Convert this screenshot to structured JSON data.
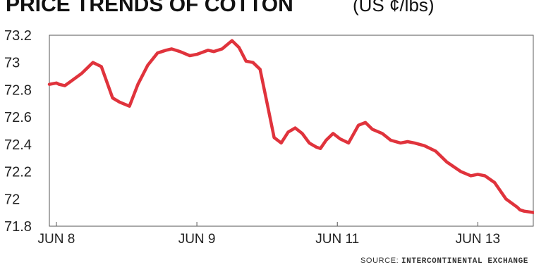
{
  "source": {
    "label": "SOURCE:",
    "name": "INTERCONTINENTAL EXCHANGE"
  },
  "chart_data": {
    "type": "line",
    "title": "PRICE TRENDS OF COTTON",
    "subtitle": "(US ¢/lbs)",
    "xlabel": "",
    "ylabel": "",
    "ylim": [
      71.8,
      73.2
    ],
    "yticks": [
      73.2,
      73,
      72.8,
      72.6,
      72.4,
      72.2,
      72,
      71.8
    ],
    "xticks": [
      "JUN 8",
      "JUN 9",
      "JUN 11",
      "JUN 13"
    ],
    "xtick_positions": [
      0,
      1,
      2,
      3
    ],
    "xlim": [
      -0.05,
      3.4
    ],
    "grid": false,
    "legend": "none",
    "line_color": "#e0333c",
    "series": [
      {
        "x": [
          -0.05,
          0.0,
          0.02,
          0.06,
          0.1,
          0.18,
          0.26,
          0.32,
          0.4,
          0.45,
          0.52,
          0.58,
          0.65,
          0.72,
          0.78,
          0.82,
          0.88,
          0.95,
          1.0,
          1.08,
          1.12,
          1.18,
          1.25,
          1.3,
          1.35,
          1.4,
          1.45,
          1.5,
          1.55,
          1.6,
          1.65,
          1.7,
          1.75,
          1.8,
          1.85,
          1.88,
          1.92,
          1.97,
          2.02,
          2.08,
          2.15,
          2.2,
          2.25,
          2.32,
          2.38,
          2.45,
          2.5,
          2.55,
          2.62,
          2.7,
          2.78,
          2.88,
          2.95,
          3.0,
          3.05,
          3.12,
          3.2,
          3.28,
          3.3,
          3.33,
          3.4
        ],
        "y": [
          72.84,
          72.85,
          72.84,
          72.83,
          72.86,
          72.92,
          73.0,
          72.97,
          72.74,
          72.71,
          72.68,
          72.84,
          72.98,
          73.07,
          73.09,
          73.1,
          73.08,
          73.05,
          73.06,
          73.09,
          73.08,
          73.1,
          73.16,
          73.11,
          73.01,
          73.0,
          72.95,
          72.7,
          72.45,
          72.41,
          72.49,
          72.52,
          72.48,
          72.41,
          72.38,
          72.37,
          72.43,
          72.48,
          72.44,
          72.41,
          72.54,
          72.56,
          72.51,
          72.48,
          72.43,
          72.41,
          72.42,
          72.41,
          72.39,
          72.35,
          72.27,
          72.2,
          72.17,
          72.18,
          72.17,
          72.12,
          72.0,
          71.94,
          71.92,
          71.91,
          71.9
        ]
      }
    ]
  }
}
